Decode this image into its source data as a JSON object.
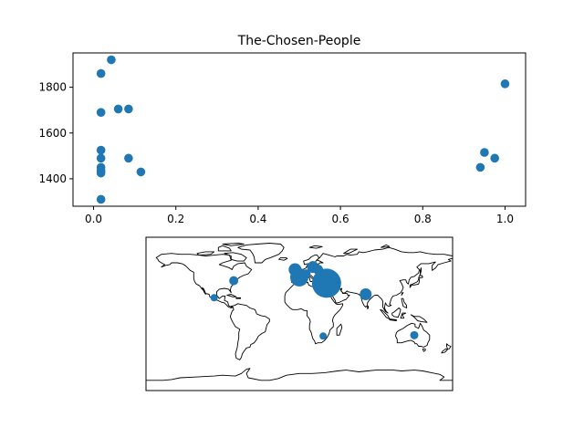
{
  "colors": {
    "marker": "#1f77b4",
    "axes": "#000000",
    "background": "#ffffff",
    "coast": "#000000"
  },
  "chart_data": [
    {
      "type": "scatter",
      "title": "The-Chosen-People",
      "xlabel": "",
      "ylabel": "",
      "xlim": [
        -0.05,
        1.05
      ],
      "ylim": [
        1280,
        1950
      ],
      "xticks": [
        0.0,
        0.2,
        0.4,
        0.6,
        0.8,
        1.0
      ],
      "xtick_labels": [
        "0.0",
        "0.2",
        "0.4",
        "0.6",
        "0.8",
        "1.0"
      ],
      "yticks": [
        1400,
        1600,
        1800
      ],
      "ytick_labels": [
        "1400",
        "1600",
        "1800"
      ],
      "grid": false,
      "series": [
        {
          "x": [
            0.043,
            0.018,
            0.018,
            0.06,
            0.085,
            0.018,
            0.018,
            0.018,
            0.085,
            0.018,
            0.018,
            0.115,
            0.018,
            1.0,
            0.95,
            0.975,
            0.94
          ],
          "y": [
            1920,
            1860,
            1690,
            1705,
            1705,
            1525,
            1490,
            1450,
            1490,
            1435,
            1425,
            1430,
            1310,
            1815,
            1515,
            1490,
            1450
          ]
        }
      ]
    },
    {
      "type": "scatter",
      "subtype": "map",
      "projection": "equirectangular",
      "grid": false,
      "points": [
        {
          "lon": -100,
          "lat": 19,
          "size": 8
        },
        {
          "lon": -77,
          "lat": 39,
          "size": 10
        },
        {
          "lon": -5,
          "lat": 52,
          "size": 14
        },
        {
          "lon": 0,
          "lat": 43,
          "size": 20
        },
        {
          "lon": 8,
          "lat": 47,
          "size": 10
        },
        {
          "lon": 16,
          "lat": 55,
          "size": 13
        },
        {
          "lon": 22,
          "lat": 52,
          "size": 11
        },
        {
          "lon": 32,
          "lat": 36,
          "size": 32
        },
        {
          "lon": 40,
          "lat": 31,
          "size": 14
        },
        {
          "lon": 28,
          "lat": -26,
          "size": 8
        },
        {
          "lon": 78,
          "lat": 23,
          "size": 13
        },
        {
          "lon": 135,
          "lat": -25,
          "size": 9
        }
      ]
    }
  ]
}
